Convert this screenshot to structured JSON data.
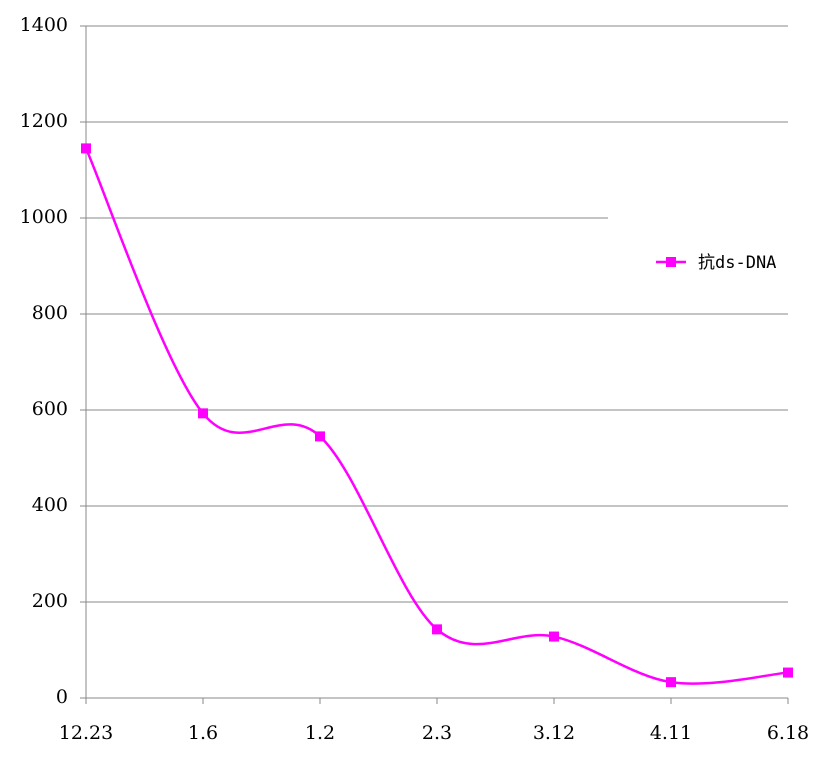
{
  "chart_data": {
    "type": "line",
    "categories": [
      "12.23",
      "1.6",
      "1.2",
      "2.3",
      "3.12",
      "4.11",
      "6.18"
    ],
    "series": [
      {
        "name": "抗ds-DNA",
        "color": "#ff00ff",
        "values": [
          1145,
          593,
          545,
          143,
          128,
          33,
          53
        ]
      }
    ],
    "ylim": [
      0,
      1400
    ],
    "yticks": [
      0,
      200,
      400,
      600,
      800,
      1000,
      1200,
      1400
    ],
    "grid": true,
    "smooth": true,
    "legend": "right"
  }
}
